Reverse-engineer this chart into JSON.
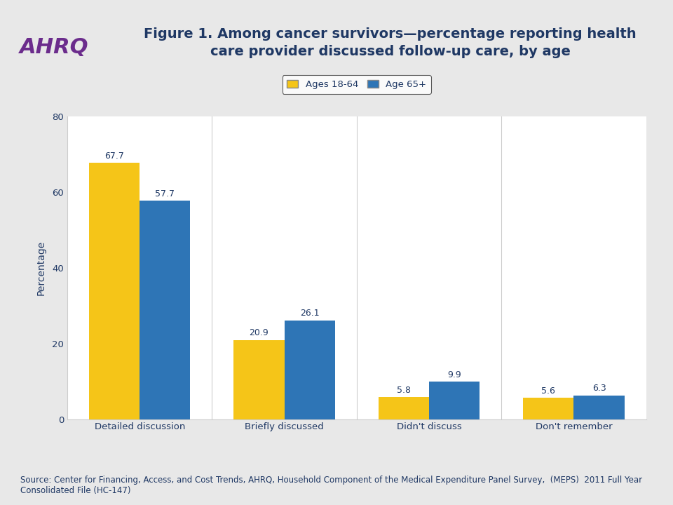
{
  "title_line1": "Figure 1. Among cancer survivors—percentage reporting health",
  "title_line2": "care provider discussed follow-up care, by age",
  "title_color": "#1F3864",
  "categories": [
    "Detailed discussion",
    "Briefly discussed",
    "Didn't discuss",
    "Don't remember"
  ],
  "series1_label": "Ages 18-64",
  "series2_label": "Age 65+",
  "series1_values": [
    67.7,
    20.9,
    5.8,
    5.6
  ],
  "series2_values": [
    57.7,
    26.1,
    9.9,
    6.3
  ],
  "color1": "#F5C518",
  "color2": "#2E75B6",
  "ylabel": "Percentage",
  "ylim": [
    0,
    80
  ],
  "yticks": [
    0,
    20,
    40,
    60,
    80
  ],
  "bar_width": 0.35,
  "header_bg_color": "#C8C8C8",
  "body_bg_color": "#E8E8E8",
  "plot_bg_color": "#FFFFFF",
  "source_text": "Source: Center for Financing, Access, and Cost Trends, AHRQ, Household Component of the Medical Expenditure Panel Survey,  (MEPS)  2011 Full Year\nConsolidated File (HC-147)",
  "source_color": "#1F3864",
  "source_fontsize": 8.5,
  "title_fontsize": 14,
  "legend_fontsize": 9.5,
  "axis_label_fontsize": 10,
  "tick_fontsize": 9.5,
  "annotation_fontsize": 9,
  "annotation_color": "#1F3864",
  "divider_color": "#999999",
  "separator_color": "#CCCCCC"
}
